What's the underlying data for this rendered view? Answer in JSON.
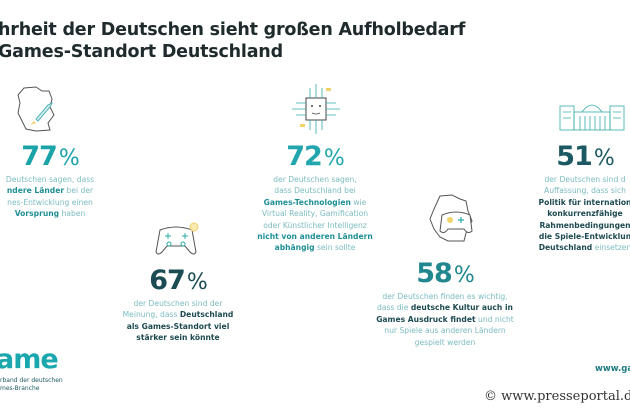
{
  "title": {
    "line1": "hrheit der Deutschen sieht großen Aufholbedarf",
    "line2": " Games-Standort Deutschland"
  },
  "stats": [
    {
      "value": "77",
      "sign": "%",
      "color": "#1aa3a9",
      "icon": "germany-rocket-icon",
      "lines": [
        [
          "Deutschen sagen, dass",
          ""
        ],
        [
          "",
          "ndere Länder",
          " bei der"
        ],
        [
          "nes-Entwicklung einen",
          "",
          ""
        ],
        [
          "",
          "Vorsprung",
          " haben"
        ]
      ]
    },
    {
      "value": "72",
      "sign": "%",
      "color": "#22a6ae",
      "icon": "ai-chip-icon",
      "lines": [
        [
          "der Deutschen sagen,",
          "",
          ""
        ],
        [
          "dass Deutschland bei",
          "",
          ""
        ],
        [
          "",
          "Games-Technologien",
          " wie"
        ],
        [
          "Virtual Reality, Gamification",
          "",
          ""
        ],
        [
          "oder Künstlicher Intelligenz",
          "",
          ""
        ],
        [
          "",
          "nicht von anderen Ländern",
          ""
        ],
        [
          "",
          "abhängig",
          " sein sollte"
        ]
      ]
    },
    {
      "value": "51",
      "sign": "%",
      "color": "#1b5a62",
      "icon": "reichstag-building-icon",
      "lines": [
        [
          "der Deutschen sind d",
          "",
          ""
        ],
        [
          "Auffassung, dass sich",
          "",
          ""
        ],
        [
          "",
          "Politik für internation",
          ""
        ],
        [
          "",
          "konkurrenzfähige",
          ""
        ],
        [
          "",
          "Rahmenbedingungen",
          ""
        ],
        [
          "",
          "die Spiele-Entwicklun",
          ""
        ],
        [
          "",
          "Deutschland",
          " einsetzen"
        ]
      ]
    },
    {
      "value": "67",
      "sign": "%",
      "color": "#1b4b53",
      "icon": "gamepad-icon",
      "lines": [
        [
          "der Deutschen sind der",
          "",
          ""
        ],
        [
          "Meinung, dass ",
          "Deutschland",
          ""
        ],
        [
          "",
          "als Games-Standort viel",
          ""
        ],
        [
          "",
          "stärker sein könnte",
          ""
        ]
      ]
    },
    {
      "value": "58",
      "sign": "%",
      "color": "#20878e",
      "icon": "germany-gamepad-icon",
      "lines": [
        [
          "der Deutschen finden es wichtig,",
          "",
          ""
        ],
        [
          "dass die ",
          "deutsche Kultur auch in",
          ""
        ],
        [
          "",
          "Games Ausdruck findet",
          " und nicht"
        ],
        [
          "nur Spiele aus anderen Ländern",
          "",
          ""
        ],
        [
          "gespielt werden",
          "",
          ""
        ]
      ]
    }
  ],
  "logo": {
    "text": "ame",
    "sub1": "rband der deutschen",
    "sub2": "mes-Branche"
  },
  "website": "www.ga",
  "watermark": "© www.presseportal.de",
  "colors": {
    "accent": "#1aa7ad",
    "body_text": "#7cbcc0",
    "dark": "#1d4a50",
    "highlight": "#f2d36b"
  }
}
